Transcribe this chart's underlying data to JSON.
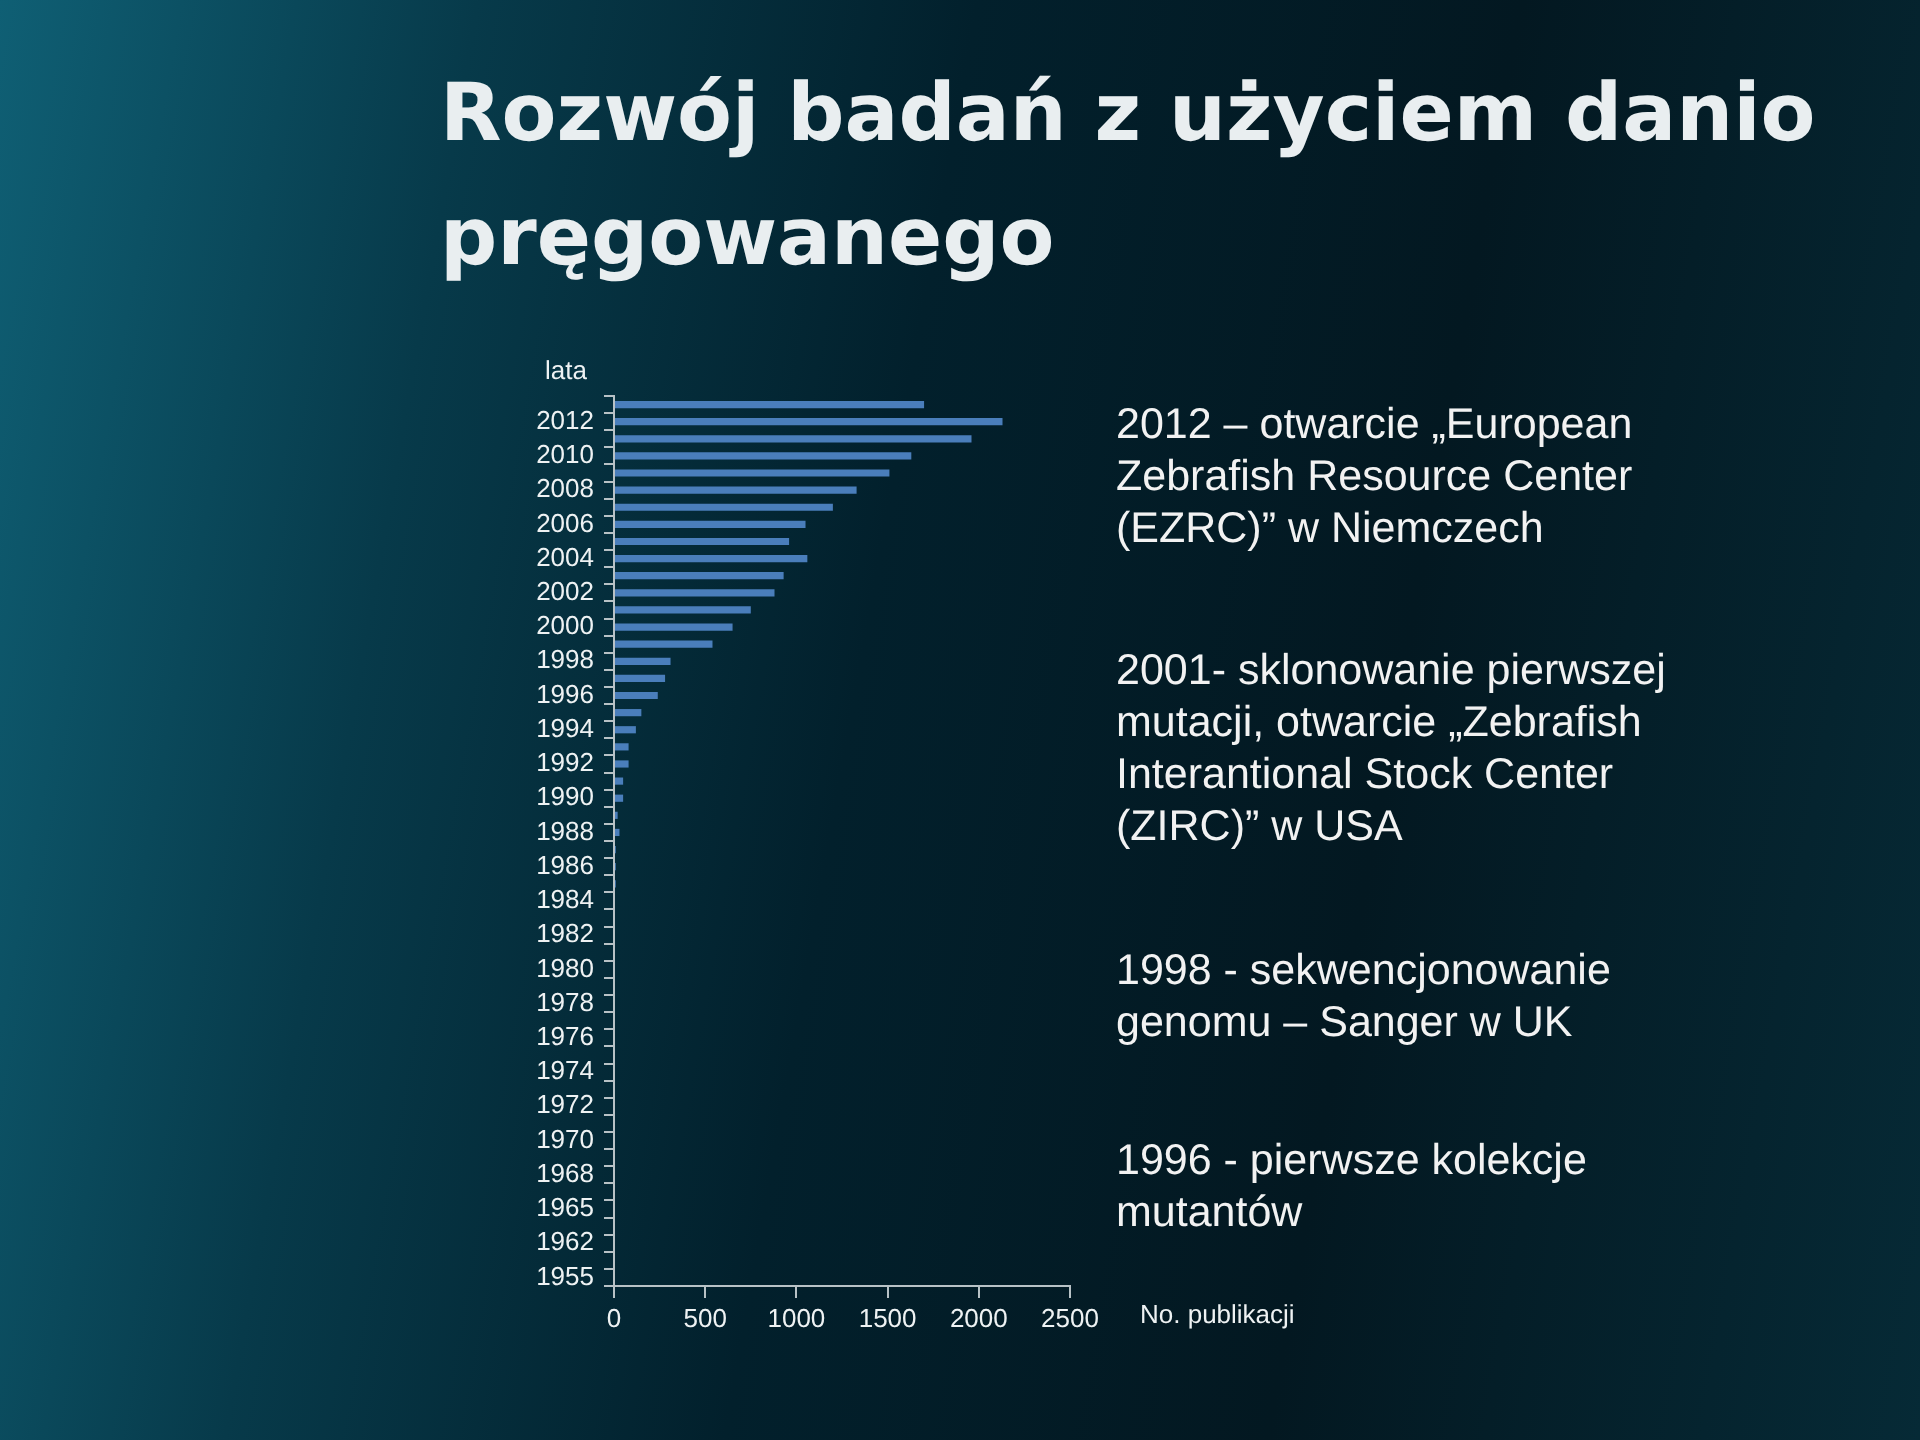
{
  "chart_data": {
    "type": "bar",
    "orientation": "horizontal",
    "title": "Rozwój badań z użyciem danio pręgowanego",
    "ylabel": "lata",
    "xlabel": "No. publikacji",
    "categories": [
      null,
      "2012",
      null,
      "2010",
      null,
      "2008",
      null,
      "2006",
      null,
      "2004",
      null,
      "2002",
      null,
      "2000",
      null,
      "1998",
      null,
      "1996",
      null,
      "1994",
      null,
      "1992",
      null,
      "1990",
      null,
      "1988",
      null,
      "1986",
      null,
      "1984",
      null,
      "1982",
      null,
      "1980",
      null,
      "1978",
      null,
      "1976",
      null,
      "1974",
      null,
      "1972",
      null,
      "1970",
      null,
      "1968",
      null,
      "1965",
      null,
      "1962",
      null,
      "1955"
    ],
    "values": [
      1700,
      2130,
      1960,
      1630,
      1510,
      1330,
      1200,
      1050,
      960,
      1060,
      930,
      880,
      750,
      650,
      540,
      310,
      280,
      240,
      150,
      120,
      80,
      80,
      50,
      50,
      20,
      30,
      10,
      10,
      10,
      0,
      0,
      0,
      0,
      0,
      0,
      0,
      0,
      0,
      0,
      0,
      0,
      0,
      0,
      0,
      0,
      0,
      0,
      0,
      0,
      0,
      0,
      0
    ],
    "color": "#4a7ebb",
    "xlim": [
      0,
      2500
    ],
    "xticks": [
      0,
      500,
      1000,
      1500,
      2000,
      2500
    ],
    "annotations": [
      "2012 – otwarcie „European Zebrafish Resource Center (EZRC)” w Niemczech",
      "2001- sklonowanie pierwszej mutacji, otwarcie „Zebrafish Interantional Stock Center (ZIRC)” w USA",
      "1998 - sekwencjonowanie genomu – Sanger w UK",
      "1996 - pierwsze kolekcje mutantów"
    ]
  }
}
